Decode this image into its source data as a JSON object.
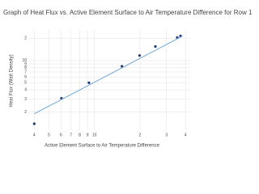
{
  "chart_data": {
    "type": "scatter",
    "title": "Graph of Heat Flux vs. Active Element Surface to Air Temperature Difference for Row 1",
    "x_label": "Active Element Surface to Air Temperature Difference",
    "y_label": "Heat Flux (Watt Density)",
    "x_log": true,
    "y_log": true,
    "grid": true,
    "xlim": [
      3.7,
      43
    ],
    "ylim": [
      1.14,
      26
    ],
    "xticks": [
      4,
      5,
      6,
      7,
      8,
      9,
      10,
      {
        "value": 20,
        "label": "2"
      },
      {
        "value": 30,
        "label": "3"
      },
      {
        "value": 40,
        "label": "4"
      }
    ],
    "yticks": [
      2,
      3,
      4,
      5,
      6,
      7,
      8,
      9,
      10,
      {
        "value": 20,
        "label": "2"
      }
    ],
    "series": [
      {
        "mode": "markers",
        "color": "#1f3a7a",
        "x": [
          4.0,
          6.05,
          9.2,
          15.2,
          19.9,
          25.3,
          35.3,
          37.1
        ],
        "values": [
          1.39,
          3.08,
          5.0,
          8.36,
          11.7,
          15.5,
          20.5,
          21.5
        ]
      },
      {
        "mode": "lines",
        "color": "#6fa8d6",
        "x": [
          4,
          38.3
        ],
        "values": [
          1.9,
          21.5
        ]
      }
    ]
  }
}
